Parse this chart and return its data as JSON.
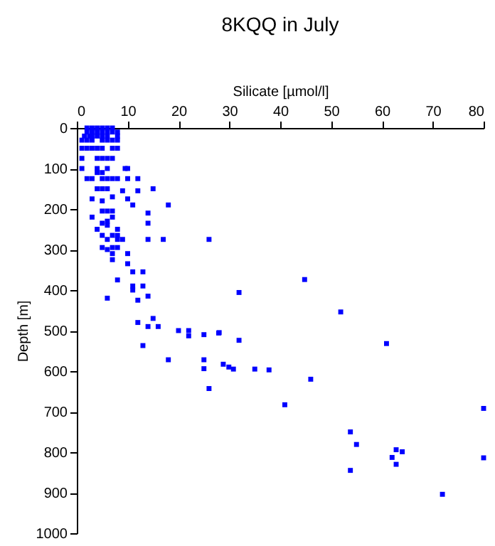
{
  "chart_data": {
    "type": "scatter",
    "title": "8KQQ in July",
    "xlabel": "Silicate [µmol/l]",
    "ylabel": "Depth [m]",
    "xlim": [
      0,
      80
    ],
    "xticks": [
      0,
      10,
      20,
      30,
      40,
      50,
      60,
      70,
      80
    ],
    "ylim": [
      1000,
      0
    ],
    "yticks": [
      0,
      100,
      200,
      300,
      400,
      500,
      600,
      700,
      800,
      900,
      1000
    ],
    "grid": false,
    "marker": "square",
    "series": [
      {
        "color": "#0000ff",
        "x": [
          2,
          3,
          4,
          5,
          6,
          7,
          2,
          3,
          4,
          5,
          6,
          7,
          8,
          1.5,
          2.5,
          3,
          4,
          5,
          6,
          8,
          1,
          2,
          3,
          5,
          6,
          7,
          8,
          1,
          2,
          3,
          4,
          5,
          7,
          8,
          1,
          4,
          5,
          6,
          7,
          1,
          4,
          6,
          9.5,
          10,
          4,
          5,
          2,
          3,
          5,
          6,
          7,
          8,
          10,
          12,
          4,
          5,
          6,
          15,
          9,
          12,
          7,
          3,
          10,
          5,
          11,
          18,
          5,
          6,
          7,
          14,
          3,
          7,
          6,
          5,
          14,
          6,
          4,
          8,
          5,
          7,
          8,
          6,
          8,
          9,
          14,
          17,
          26,
          5,
          7,
          8,
          6,
          7,
          10,
          7,
          10,
          11,
          13,
          8,
          11,
          13,
          11,
          31.9,
          14,
          6,
          12,
          15,
          12,
          14,
          16,
          20,
          22,
          22,
          25,
          28,
          27.9,
          31.9,
          13,
          18,
          25,
          25,
          26,
          44.8,
          51.9,
          60.9,
          28.8,
          29.9,
          30.8,
          35,
          37.8,
          46,
          40.9,
          53.8,
          55,
          62.8,
          64,
          62,
          62.8,
          53.8,
          71.9,
          80,
          80
        ],
        "values": [
          0,
          0,
          0,
          0,
          0,
          0,
          10,
          10,
          10,
          10,
          10,
          10,
          10,
          20,
          20,
          20,
          20,
          20,
          20,
          20,
          30,
          30,
          30,
          30,
          30,
          30,
          30,
          50,
          50,
          50,
          50,
          50,
          50,
          50,
          75,
          75,
          75,
          75,
          75,
          100,
          100,
          100,
          100,
          100,
          110,
          110,
          125,
          125,
          125,
          125,
          125,
          125,
          125,
          125,
          150,
          150,
          150,
          150,
          155,
          155,
          170,
          175,
          175,
          180,
          190,
          190,
          205,
          205,
          205,
          210,
          220,
          220,
          230,
          235,
          235,
          240,
          250,
          250,
          265,
          265,
          265,
          275,
          275,
          275,
          275,
          275,
          275,
          295,
          295,
          295,
          300,
          310,
          310,
          325,
          335,
          355,
          355,
          375,
          390,
          390,
          400,
          406,
          415,
          420,
          425,
          470,
          480,
          490,
          490,
          500,
          500,
          513,
          510,
          505,
          506,
          524,
          537,
          572,
          572,
          594,
          643,
          374,
          454,
          532,
          583,
          590,
          595,
          595,
          597,
          620,
          683,
          750,
          781,
          794,
          799,
          813,
          830,
          845,
          904,
          692,
          814
        ]
      }
    ]
  }
}
